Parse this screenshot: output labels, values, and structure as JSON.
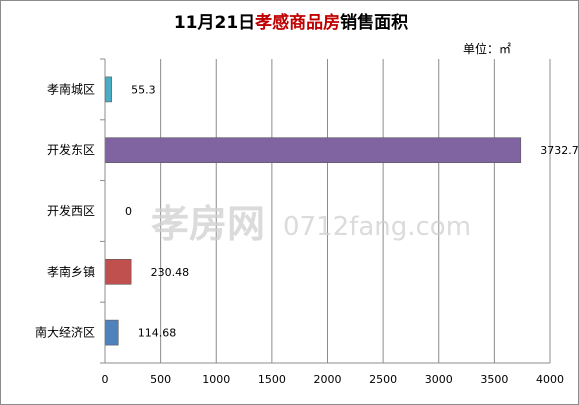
{
  "chart_data": {
    "type": "bar",
    "orientation": "horizontal",
    "title": {
      "prefix": "11月21日",
      "highlight": "孝感商品房",
      "suffix": "销售面积"
    },
    "unit_label": "单位：㎡",
    "categories": [
      "孝南城区",
      "开发东区",
      "开发西区",
      "孝南乡镇",
      "南大经济区"
    ],
    "values": [
      55.3,
      3732.7,
      0,
      230.48,
      114.68
    ],
    "value_labels": [
      "55.3",
      "3732.7",
      "0",
      "230.48",
      "114.68"
    ],
    "bar_colors": [
      "#4bacc6",
      "#8064a2",
      "#9bbb59",
      "#c0504d",
      "#4f81bd"
    ],
    "xlim": [
      0,
      4000
    ],
    "xticks": [
      0,
      500,
      1000,
      1500,
      2000,
      2500,
      3000,
      3500,
      4000
    ],
    "xlabel": "",
    "ylabel": "",
    "grid": "vertical",
    "legend": "none",
    "title_color": "#000000",
    "highlight_color": "#c00000"
  },
  "watermark": {
    "cn": "孝房网",
    "en": "0712fang.com"
  }
}
